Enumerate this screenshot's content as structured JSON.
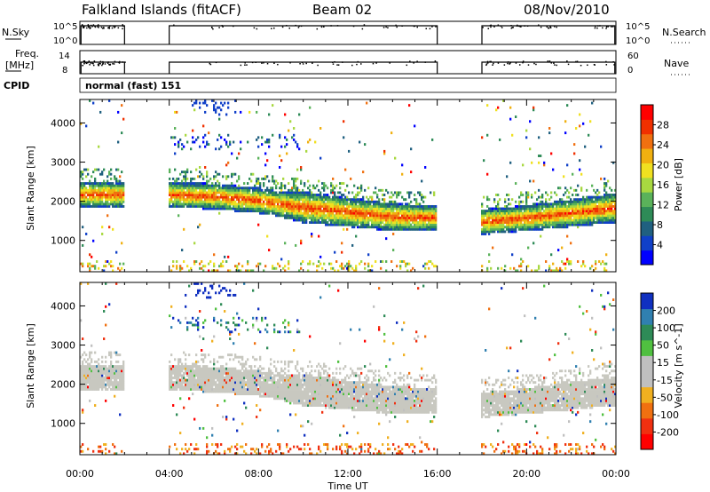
{
  "header": {
    "station": "Falkland Islands (fitACF)",
    "beam": "Beam 02",
    "date": "08/Nov/2010"
  },
  "panels": {
    "nsky": {
      "left_label": "N.Sky",
      "left_ticks": [
        "10^5",
        "10^0"
      ],
      "right_ticks": [
        "10^5",
        "10^0"
      ],
      "right_label": "N.Search"
    },
    "freq": {
      "left_label_1": "Freq.",
      "left_label_2": "[MHz]",
      "left_ticks": [
        "14",
        "8"
      ],
      "right_ticks": [
        "60",
        "0"
      ],
      "right_label": "Nave"
    },
    "cpid": {
      "label": "CPID",
      "value": "normal (fast) 151"
    }
  },
  "chart_data": [
    {
      "type": "heatmap",
      "name": "power",
      "xlabel": "",
      "ylabel": "Slant Range [km]",
      "x_range_hours": [
        0,
        24
      ],
      "ylim": [
        200,
        4600
      ],
      "y_ticks": [
        1000,
        2000,
        3000,
        4000
      ],
      "colorbar": {
        "label": "Power [dB]",
        "ticks": [
          "4",
          "8",
          "12",
          "16",
          "20",
          "24",
          "28"
        ],
        "range": [
          0,
          32
        ],
        "colors": [
          "#0000ff",
          "#1040c8",
          "#206080",
          "#2e8b57",
          "#5ab25a",
          "#a8d840",
          "#f0e020",
          "#f0b010",
          "#f07010",
          "#f03000",
          "#ff0000"
        ]
      },
      "data_gaps_hours": [
        [
          2,
          4
        ],
        [
          16,
          18
        ]
      ],
      "band": [
        {
          "t": 0.2,
          "low": 1850,
          "high": 2500
        },
        {
          "t": 1.9,
          "low": 1850,
          "high": 2500
        },
        {
          "t": 4.0,
          "low": 1850,
          "high": 2500
        },
        {
          "t": 6.0,
          "low": 1800,
          "high": 2450
        },
        {
          "t": 8.0,
          "low": 1700,
          "high": 2350
        },
        {
          "t": 9.0,
          "low": 1600,
          "high": 2250
        },
        {
          "t": 10.0,
          "low": 1450,
          "high": 2250
        },
        {
          "t": 12.0,
          "low": 1350,
          "high": 2100
        },
        {
          "t": 14.0,
          "low": 1250,
          "high": 1950
        },
        {
          "t": 15.9,
          "low": 1250,
          "high": 1900
        },
        {
          "t": 18.0,
          "low": 1150,
          "high": 1800
        },
        {
          "t": 20.0,
          "low": 1250,
          "high": 1900
        },
        {
          "t": 22.0,
          "low": 1350,
          "high": 2050
        },
        {
          "t": 23.9,
          "low": 1450,
          "high": 2200
        }
      ]
    },
    {
      "type": "heatmap",
      "name": "velocity",
      "xlabel": "Time UT",
      "ylabel": "Slant Range [km]",
      "x_range_hours": [
        0,
        24
      ],
      "x_tick_labels": [
        "00:00",
        "04:00",
        "08:00",
        "12:00",
        "16:00",
        "20:00",
        "00:00"
      ],
      "ylim": [
        200,
        4600
      ],
      "y_ticks": [
        1000,
        2000,
        3000,
        4000
      ],
      "colorbar": {
        "label": "Velocity [m s^-1]",
        "ticks": [
          "200",
          "100",
          "50",
          "15",
          "-15",
          "-50",
          "-100",
          "-200"
        ],
        "colors": [
          "#1030c0",
          "#3080b0",
          "#2e8b57",
          "#50c040",
          "#c0c0c0",
          "#c0c0c0",
          "#f0b020",
          "#f07010",
          "#f03010",
          "#ff0000"
        ]
      },
      "data_gaps_hours": [
        [
          2,
          4
        ],
        [
          16,
          18
        ]
      ],
      "dominant_color": "#c8c8c0"
    }
  ]
}
